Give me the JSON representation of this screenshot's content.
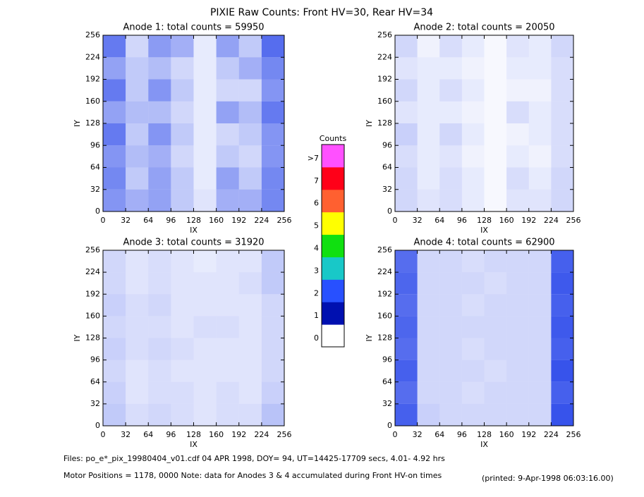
{
  "title": "PIXIE Raw Counts:  Front HV=30, Rear HV=34",
  "footer": [
    "Files: po_e*_pix_19980404_v01.cdf    04 APR 1998, DOY= 94, UT=14425-17709 secs,  4.01- 4.92 hrs",
    "Motor Positions = 1178, 0000   Note: data for Anodes 3 & 4 accumulated during Front HV-on times",
    "(printed:  9-Apr-1998 06:03:16.00)"
  ],
  "colorbar": {
    "title": "Counts",
    "labels": [
      "0",
      "1",
      "2",
      "3",
      "4",
      "5",
      "6",
      "7",
      ">7"
    ],
    "colors": [
      "#ffffff",
      "#0010b0",
      "#2850ff",
      "#18c8c8",
      "#10e010",
      "#ffff00",
      "#ff6030",
      "#ff0018",
      "#ff50ff"
    ]
  },
  "chart_data": [
    {
      "type": "heatmap",
      "title": "Anode 1: total counts = 59950",
      "x_label": "IX",
      "y_label": "IY",
      "color": "#1838e8",
      "xlim": [
        0,
        256
      ],
      "ylim": [
        0,
        256
      ],
      "xticks": [
        0,
        32,
        64,
        96,
        128,
        160,
        192,
        224,
        256
      ],
      "yticks": [
        0,
        32,
        64,
        96,
        128,
        160,
        192,
        224,
        256
      ],
      "z": [
        [
          1.6,
          1.2,
          1.4,
          0.8,
          0.4,
          1.2,
          1.2,
          1.8
        ],
        [
          1.8,
          0.8,
          1.4,
          0.8,
          0.3,
          1.4,
          0.8,
          1.8
        ],
        [
          1.6,
          1.0,
          1.2,
          0.6,
          0.3,
          0.8,
          0.6,
          1.6
        ],
        [
          2.0,
          0.8,
          1.6,
          0.8,
          0.3,
          0.6,
          0.8,
          1.6
        ],
        [
          1.4,
          1.0,
          1.0,
          0.6,
          0.3,
          1.4,
          1.0,
          2.0
        ],
        [
          2.0,
          0.8,
          1.6,
          0.8,
          0.3,
          0.6,
          0.6,
          1.6
        ],
        [
          1.4,
          0.8,
          1.0,
          0.6,
          0.3,
          0.8,
          1.2,
          1.8
        ],
        [
          2.0,
          0.6,
          1.5,
          1.2,
          0.3,
          1.4,
          0.8,
          2.2
        ]
      ]
    },
    {
      "type": "heatmap",
      "title": "Anode 2: total counts = 20050",
      "x_label": "IX",
      "y_label": "IY",
      "color": "#1838e8",
      "xlim": [
        0,
        256
      ],
      "ylim": [
        0,
        256
      ],
      "xticks": [
        0,
        32,
        64,
        96,
        128,
        160,
        192,
        224,
        256
      ],
      "yticks": [
        0,
        32,
        64,
        96,
        128,
        160,
        192,
        224,
        256
      ],
      "z": [
        [
          0.6,
          0.4,
          0.5,
          0.3,
          0.1,
          0.4,
          0.4,
          0.6
        ],
        [
          0.6,
          0.3,
          0.5,
          0.3,
          0.1,
          0.5,
          0.3,
          0.6
        ],
        [
          0.5,
          0.3,
          0.4,
          0.2,
          0.1,
          0.3,
          0.2,
          0.5
        ],
        [
          0.7,
          0.3,
          0.6,
          0.3,
          0.1,
          0.2,
          0.3,
          0.5
        ],
        [
          0.4,
          0.3,
          0.3,
          0.2,
          0.1,
          0.5,
          0.3,
          0.5
        ],
        [
          0.6,
          0.3,
          0.5,
          0.3,
          0.1,
          0.2,
          0.2,
          0.5
        ],
        [
          0.4,
          0.3,
          0.3,
          0.2,
          0.1,
          0.3,
          0.3,
          0.5
        ],
        [
          0.6,
          0.2,
          0.5,
          0.3,
          0.1,
          0.4,
          0.3,
          0.6
        ]
      ]
    },
    {
      "type": "heatmap",
      "title": "Anode 3: total counts = 31920",
      "x_label": "IX",
      "y_label": "IY",
      "color": "#1838e8",
      "xlim": [
        0,
        256
      ],
      "ylim": [
        0,
        256
      ],
      "xticks": [
        0,
        32,
        64,
        96,
        128,
        160,
        192,
        224,
        256
      ],
      "yticks": [
        0,
        32,
        64,
        96,
        128,
        160,
        192,
        224,
        256
      ],
      "z": [
        [
          0.8,
          0.5,
          0.6,
          0.5,
          0.4,
          0.5,
          0.5,
          0.9
        ],
        [
          0.7,
          0.4,
          0.5,
          0.5,
          0.4,
          0.5,
          0.4,
          0.7
        ],
        [
          0.6,
          0.4,
          0.5,
          0.4,
          0.4,
          0.4,
          0.4,
          0.6
        ],
        [
          0.7,
          0.5,
          0.6,
          0.5,
          0.4,
          0.4,
          0.4,
          0.6
        ],
        [
          0.6,
          0.5,
          0.5,
          0.4,
          0.5,
          0.5,
          0.4,
          0.6
        ],
        [
          0.7,
          0.5,
          0.6,
          0.4,
          0.4,
          0.4,
          0.4,
          0.6
        ],
        [
          0.6,
          0.4,
          0.5,
          0.4,
          0.4,
          0.4,
          0.5,
          0.8
        ],
        [
          0.6,
          0.4,
          0.5,
          0.4,
          0.3,
          0.4,
          0.4,
          0.8
        ]
      ]
    },
    {
      "type": "heatmap",
      "title": "Anode 4: total counts = 62900",
      "x_label": "IX",
      "y_label": "IY",
      "color": "#1838e8",
      "xlim": [
        0,
        256
      ],
      "ylim": [
        0,
        256
      ],
      "xticks": [
        0,
        32,
        64,
        96,
        128,
        160,
        192,
        224,
        256
      ],
      "yticks": [
        0,
        32,
        64,
        96,
        128,
        160,
        192,
        224,
        256
      ],
      "z": [
        [
          2.4,
          0.7,
          0.6,
          0.6,
          0.6,
          0.6,
          0.6,
          2.6
        ],
        [
          2.2,
          0.6,
          0.6,
          0.5,
          0.6,
          0.6,
          0.6,
          2.4
        ],
        [
          2.4,
          0.6,
          0.6,
          0.6,
          0.5,
          0.6,
          0.6,
          2.6
        ],
        [
          2.2,
          0.6,
          0.6,
          0.5,
          0.6,
          0.6,
          0.6,
          2.4
        ],
        [
          2.3,
          0.6,
          0.6,
          0.6,
          0.6,
          0.6,
          0.6,
          2.5
        ],
        [
          2.2,
          0.6,
          0.6,
          0.5,
          0.6,
          0.6,
          0.6,
          2.4
        ],
        [
          2.3,
          0.6,
          0.6,
          0.6,
          0.5,
          0.6,
          0.6,
          2.5
        ],
        [
          2.2,
          0.6,
          0.6,
          0.5,
          0.6,
          0.6,
          0.6,
          2.4
        ]
      ]
    }
  ]
}
